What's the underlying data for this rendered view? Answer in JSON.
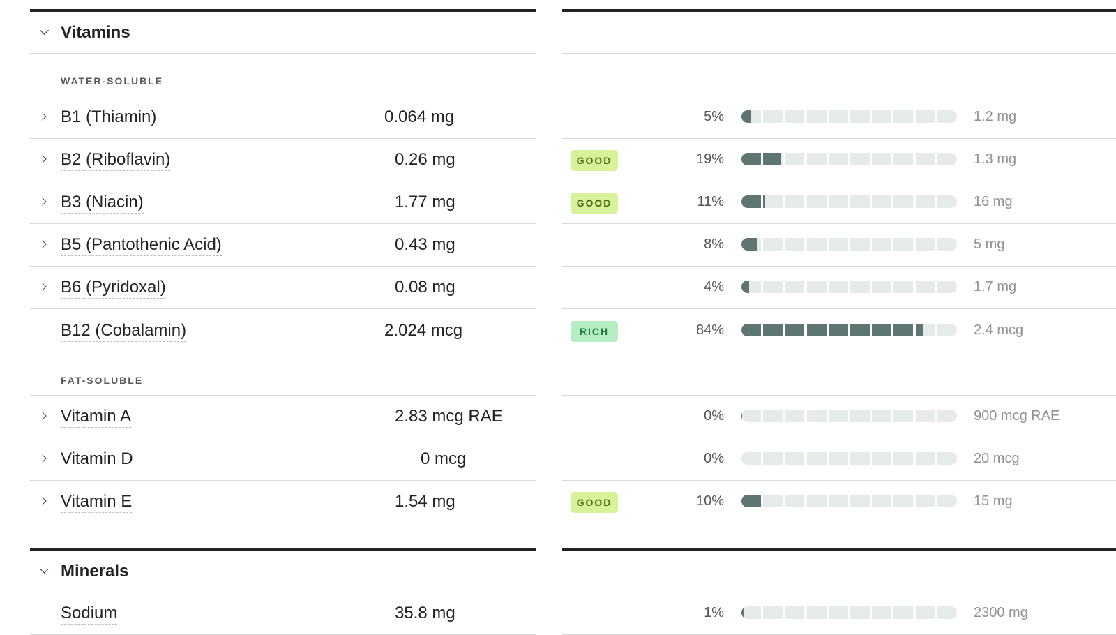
{
  "sections": [
    {
      "title": "Vitamins",
      "groups": [
        {
          "label": "WATER-SOLUBLE",
          "rows": [
            {
              "name": "B1 (Thiamin)",
              "amount": "0.064 mg",
              "badge": "",
              "badge_type": "",
              "percent": "5%",
              "fill": 0.05,
              "target": "1.2 mg",
              "expandable": true
            },
            {
              "name": "B2 (Riboflavin)",
              "amount": "0.26 mg",
              "badge": "GOOD",
              "badge_type": "good",
              "percent": "19%",
              "fill": 0.19,
              "target": "1.3 mg",
              "expandable": true
            },
            {
              "name": "B3 (Niacin)",
              "amount": "1.77 mg",
              "badge": "GOOD",
              "badge_type": "good",
              "percent": "11%",
              "fill": 0.11,
              "target": "16 mg",
              "expandable": true
            },
            {
              "name": "B5 (Pantothenic Acid)",
              "amount": "0.43 mg",
              "badge": "",
              "badge_type": "",
              "percent": "8%",
              "fill": 0.08,
              "target": "5 mg",
              "expandable": true
            },
            {
              "name": "B6 (Pyridoxal)",
              "amount": "0.08 mg",
              "badge": "",
              "badge_type": "",
              "percent": "4%",
              "fill": 0.04,
              "target": "1.7 mg",
              "expandable": true
            },
            {
              "name": "B12 (Cobalamin)",
              "amount": "2.024 mcg",
              "badge": "RICH",
              "badge_type": "rich",
              "percent": "84%",
              "fill": 0.84,
              "target": "2.4 mcg",
              "expandable": false
            }
          ]
        },
        {
          "label": "FAT-SOLUBLE",
          "rows": [
            {
              "name": "Vitamin A",
              "amount": "2.83 mcg RAE",
              "badge": "",
              "badge_type": "",
              "percent": "0%",
              "fill": 0.003,
              "target": "900 mcg RAE",
              "expandable": true
            },
            {
              "name": "Vitamin D",
              "amount": "0 mcg",
              "badge": "",
              "badge_type": "",
              "percent": "0%",
              "fill": 0,
              "target": "20 mcg",
              "expandable": true
            },
            {
              "name": "Vitamin E",
              "amount": "1.54 mg",
              "badge": "GOOD",
              "badge_type": "good",
              "percent": "10%",
              "fill": 0.1,
              "target": "15 mg",
              "expandable": true
            }
          ]
        }
      ]
    },
    {
      "title": "Minerals",
      "groups": [
        {
          "label": "",
          "rows": [
            {
              "name": "Sodium",
              "amount": "35.8 mg",
              "badge": "",
              "badge_type": "",
              "percent": "1%",
              "fill": 0.01,
              "target": "2300 mg",
              "expandable": false
            }
          ]
        }
      ]
    }
  ],
  "colors": {
    "bar_fill": "#5e7572",
    "bar_empty": "#e6eaea",
    "good_bg": "#d8f29a",
    "rich_bg": "#b6eec4"
  }
}
